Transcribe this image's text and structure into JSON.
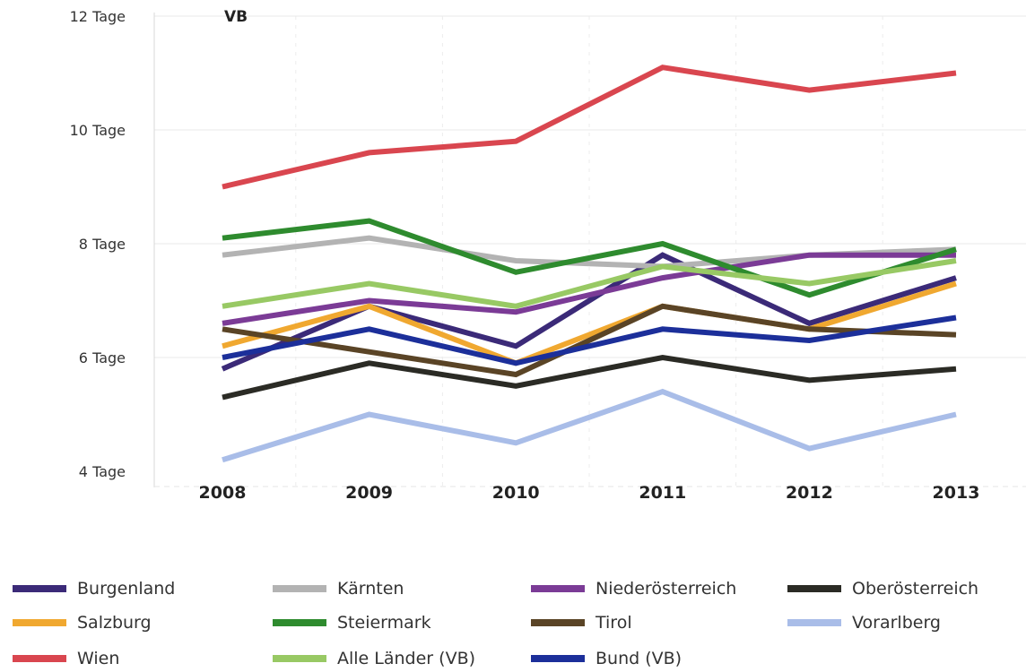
{
  "chart_data": {
    "type": "line",
    "title": "VB",
    "categories": [
      "2008",
      "2009",
      "2010",
      "2011",
      "2012",
      "2013"
    ],
    "y_ticks": [
      "4 Tage",
      "6 Tage",
      "8 Tage",
      "10 Tage",
      "12 Tage"
    ],
    "ylim": [
      4,
      12
    ],
    "grid": true,
    "legend_position": "bottom",
    "series": [
      {
        "name": "Burgenland",
        "color": "#3b2a78",
        "values": [
          5.8,
          6.9,
          6.2,
          7.8,
          6.6,
          7.4
        ]
      },
      {
        "name": "Kärnten",
        "color": "#b3b3b3",
        "values": [
          7.8,
          8.1,
          7.7,
          7.6,
          7.8,
          7.9
        ]
      },
      {
        "name": "Niederösterreich",
        "color": "#7b3b96",
        "values": [
          6.6,
          7.0,
          6.8,
          7.4,
          7.8,
          7.8
        ]
      },
      {
        "name": "Oberösterreich",
        "color": "#2b2b25",
        "values": [
          5.3,
          5.9,
          5.5,
          6.0,
          5.6,
          5.8
        ]
      },
      {
        "name": "Salzburg",
        "color": "#f0a830",
        "values": [
          6.2,
          6.9,
          5.9,
          6.9,
          6.5,
          7.3
        ]
      },
      {
        "name": "Steiermark",
        "color": "#2e8b2e",
        "values": [
          8.1,
          8.4,
          7.5,
          8.0,
          7.1,
          7.9
        ]
      },
      {
        "name": "Tirol",
        "color": "#5a4426",
        "values": [
          6.5,
          6.1,
          5.7,
          6.9,
          6.5,
          6.4
        ]
      },
      {
        "name": "Vorarlberg",
        "color": "#a9bde8",
        "values": [
          4.2,
          5.0,
          4.5,
          5.4,
          4.4,
          5.0
        ]
      },
      {
        "name": "Wien",
        "color": "#d9464f",
        "values": [
          9.0,
          9.6,
          9.8,
          11.1,
          10.7,
          11.0
        ]
      },
      {
        "name": "Alle Länder (VB)",
        "color": "#98c964",
        "values": [
          6.9,
          7.3,
          6.9,
          7.6,
          7.3,
          7.7
        ]
      },
      {
        "name": "Bund (VB)",
        "color": "#1c2f9a",
        "values": [
          6.0,
          6.5,
          5.9,
          6.5,
          6.3,
          6.7
        ]
      }
    ]
  }
}
